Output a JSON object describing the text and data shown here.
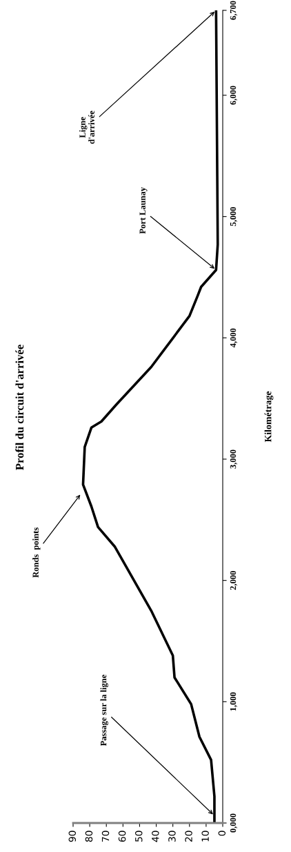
{
  "chart_data": {
    "type": "line",
    "orientation": "horizontal",
    "title": "Profil du circuit d'arrivée",
    "ylabel": "Kilométrage",
    "x": [
      0,
      220,
      520,
      710,
      980,
      1200,
      1380,
      1750,
      2280,
      2440,
      2610,
      2790,
      3100,
      3260,
      3310,
      3450,
      3760,
      4180,
      4350,
      4420,
      4560,
      4770,
      6700
    ],
    "series": [
      {
        "color": "#000000",
        "values": [
          5,
          5,
          7,
          14,
          19,
          29,
          30,
          43,
          65,
          75,
          79,
          84,
          83,
          79,
          73,
          64,
          43,
          20,
          15,
          13,
          4,
          3,
          4
        ]
      }
    ],
    "ylim": [
      0,
      6700
    ],
    "yticks": [
      {
        "value": 0,
        "label": "0,000"
      },
      {
        "value": 1000,
        "label": "1,000"
      },
      {
        "value": 2000,
        "label": "2,000"
      },
      {
        "value": 3000,
        "label": "3,000"
      },
      {
        "value": 4000,
        "label": "4,000"
      },
      {
        "value": 5000,
        "label": "5,000"
      },
      {
        "value": 6000,
        "label": "6,000"
      },
      {
        "value": 6700,
        "label": "6,700"
      }
    ],
    "xlim": [
      90,
      0
    ],
    "xticks": [
      0,
      10,
      20,
      30,
      40,
      50,
      60,
      70,
      80,
      90
    ],
    "annotations": [
      {
        "text": "Passage sur la ligne",
        "x": 5,
        "y": 60
      },
      {
        "text": "Ronds  points",
        "x": 85,
        "y": 2720
      },
      {
        "text": "Port Launay",
        "x": 4,
        "y": 4560
      },
      {
        "text": "Ligne\nd'arrivée",
        "x": 4,
        "y": 6700
      }
    ]
  }
}
